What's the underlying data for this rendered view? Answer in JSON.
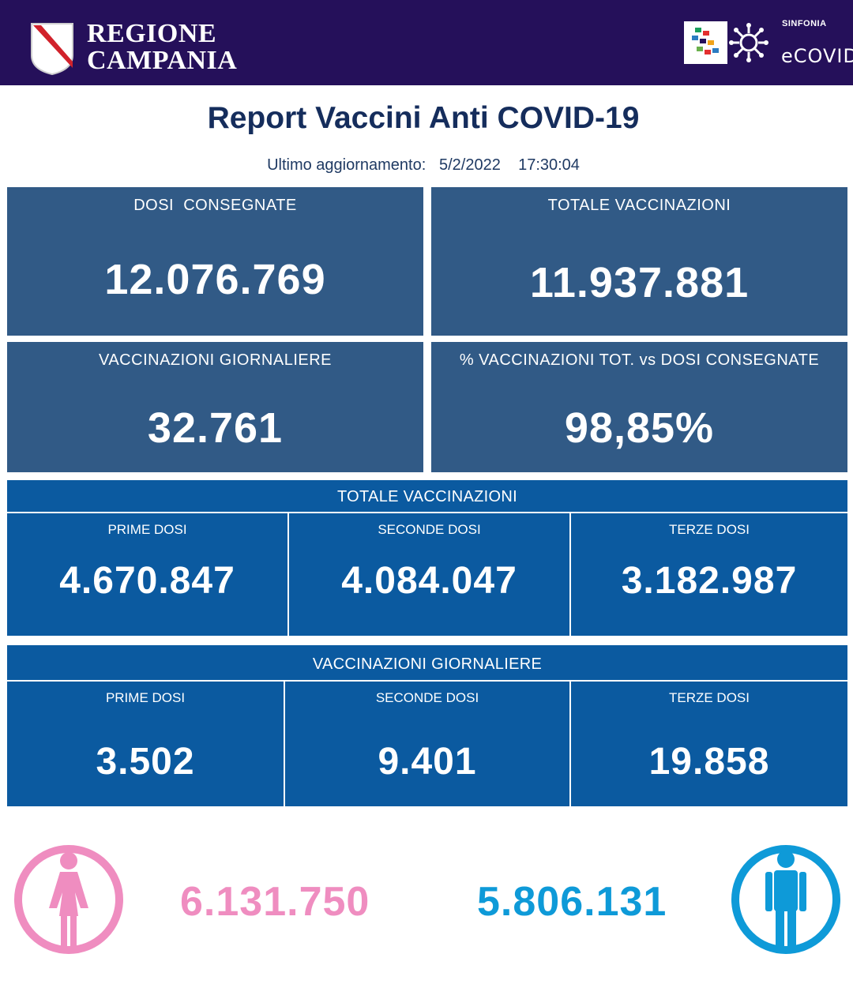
{
  "header": {
    "brand_line1": "REGIONE",
    "brand_line2": "CAMPANIA",
    "sinfonia": "SINFONIA",
    "ecovid": "eCOVID"
  },
  "title": "Report Vaccini Anti COVID-19",
  "updated": {
    "label": "Ultimo aggiornamento:",
    "date": "5/2/2022",
    "time": "17:30:04"
  },
  "summary": {
    "dosi_consegnate": {
      "label": "DOSI  CONSEGNATE",
      "value": "12.076.769"
    },
    "totale_vaccinazioni": {
      "label": "TOTALE VACCINAZIONI",
      "value": "11.937.881"
    },
    "vaccinazioni_giornaliere": {
      "label": "VACCINAZIONI GIORNALIERE",
      "value": "32.761"
    },
    "percentuale": {
      "label": "% VACCINAZIONI TOT. vs DOSI CONSEGNATE",
      "value": "98,85%"
    }
  },
  "totale": {
    "heading": "TOTALE VACCINAZIONI",
    "prime": {
      "label": "PRIME DOSI",
      "value": "4.670.847"
    },
    "seconde": {
      "label": "SECONDE DOSI",
      "value": "4.084.047"
    },
    "terze": {
      "label": "TERZE DOSI",
      "value": "3.182.987"
    }
  },
  "giornaliere": {
    "heading": "VACCINAZIONI GIORNALIERE",
    "prime": {
      "label": "PRIME DOSI",
      "value": "3.502"
    },
    "seconde": {
      "label": "SECONDE DOSI",
      "value": "9.401"
    },
    "terze": {
      "label": "TERZE DOSI",
      "value": "19.858"
    }
  },
  "gender": {
    "female": {
      "value": "6.131.750",
      "icon": "female-icon"
    },
    "male": {
      "value": "5.806.131",
      "icon": "male-icon"
    }
  },
  "colors": {
    "header_bg": "#25105a",
    "title": "#152d5c",
    "summary_card": "#315a86",
    "dose_panel": "#0b5aa0",
    "female": "#ef8dc0",
    "male": "#0e9ad8"
  }
}
